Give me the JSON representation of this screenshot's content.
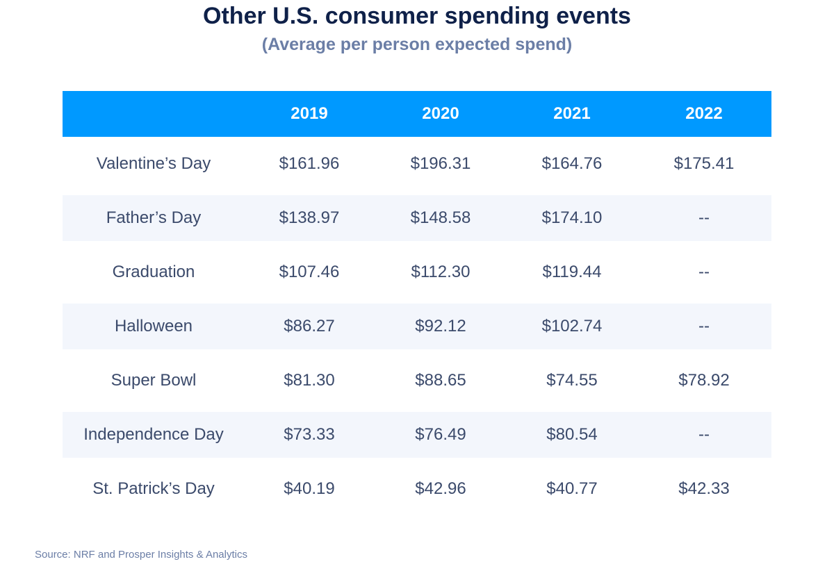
{
  "chart_data": {
    "type": "table",
    "title": "Other U.S. consumer spending events",
    "subtitle": "(Average per person expected spend)",
    "columns": [
      "",
      "2019",
      "2020",
      "2021",
      "2022"
    ],
    "rows": [
      {
        "label": "Valentine’s Day",
        "values": [
          "$161.96",
          "$196.31",
          "$164.76",
          "$175.41"
        ]
      },
      {
        "label": "Father’s Day",
        "values": [
          "$138.97",
          "$148.58",
          "$174.10",
          "--"
        ]
      },
      {
        "label": "Graduation",
        "values": [
          "$107.46",
          "$112.30",
          "$119.44",
          "--"
        ]
      },
      {
        "label": "Halloween",
        "values": [
          "$86.27",
          "$92.12",
          "$102.74",
          "--"
        ]
      },
      {
        "label": "Super Bowl",
        "values": [
          "$81.30",
          "$88.65",
          "$74.55",
          "$78.92"
        ]
      },
      {
        "label": "Independence Day",
        "values": [
          "$73.33",
          "$76.49",
          "$80.54",
          "--"
        ]
      },
      {
        "label": "St. Patrick’s Day",
        "values": [
          "$40.19",
          "$42.96",
          "$40.77",
          "$42.33"
        ]
      }
    ],
    "source": "Source: NRF and Prosper Insights & Analytics"
  },
  "colors": {
    "header_bg": "#0099ff",
    "title": "#0f2149",
    "subtitle": "#6b7ea6",
    "shaded_row": "#f3f6fc",
    "body_text": "#3b4a6b"
  }
}
